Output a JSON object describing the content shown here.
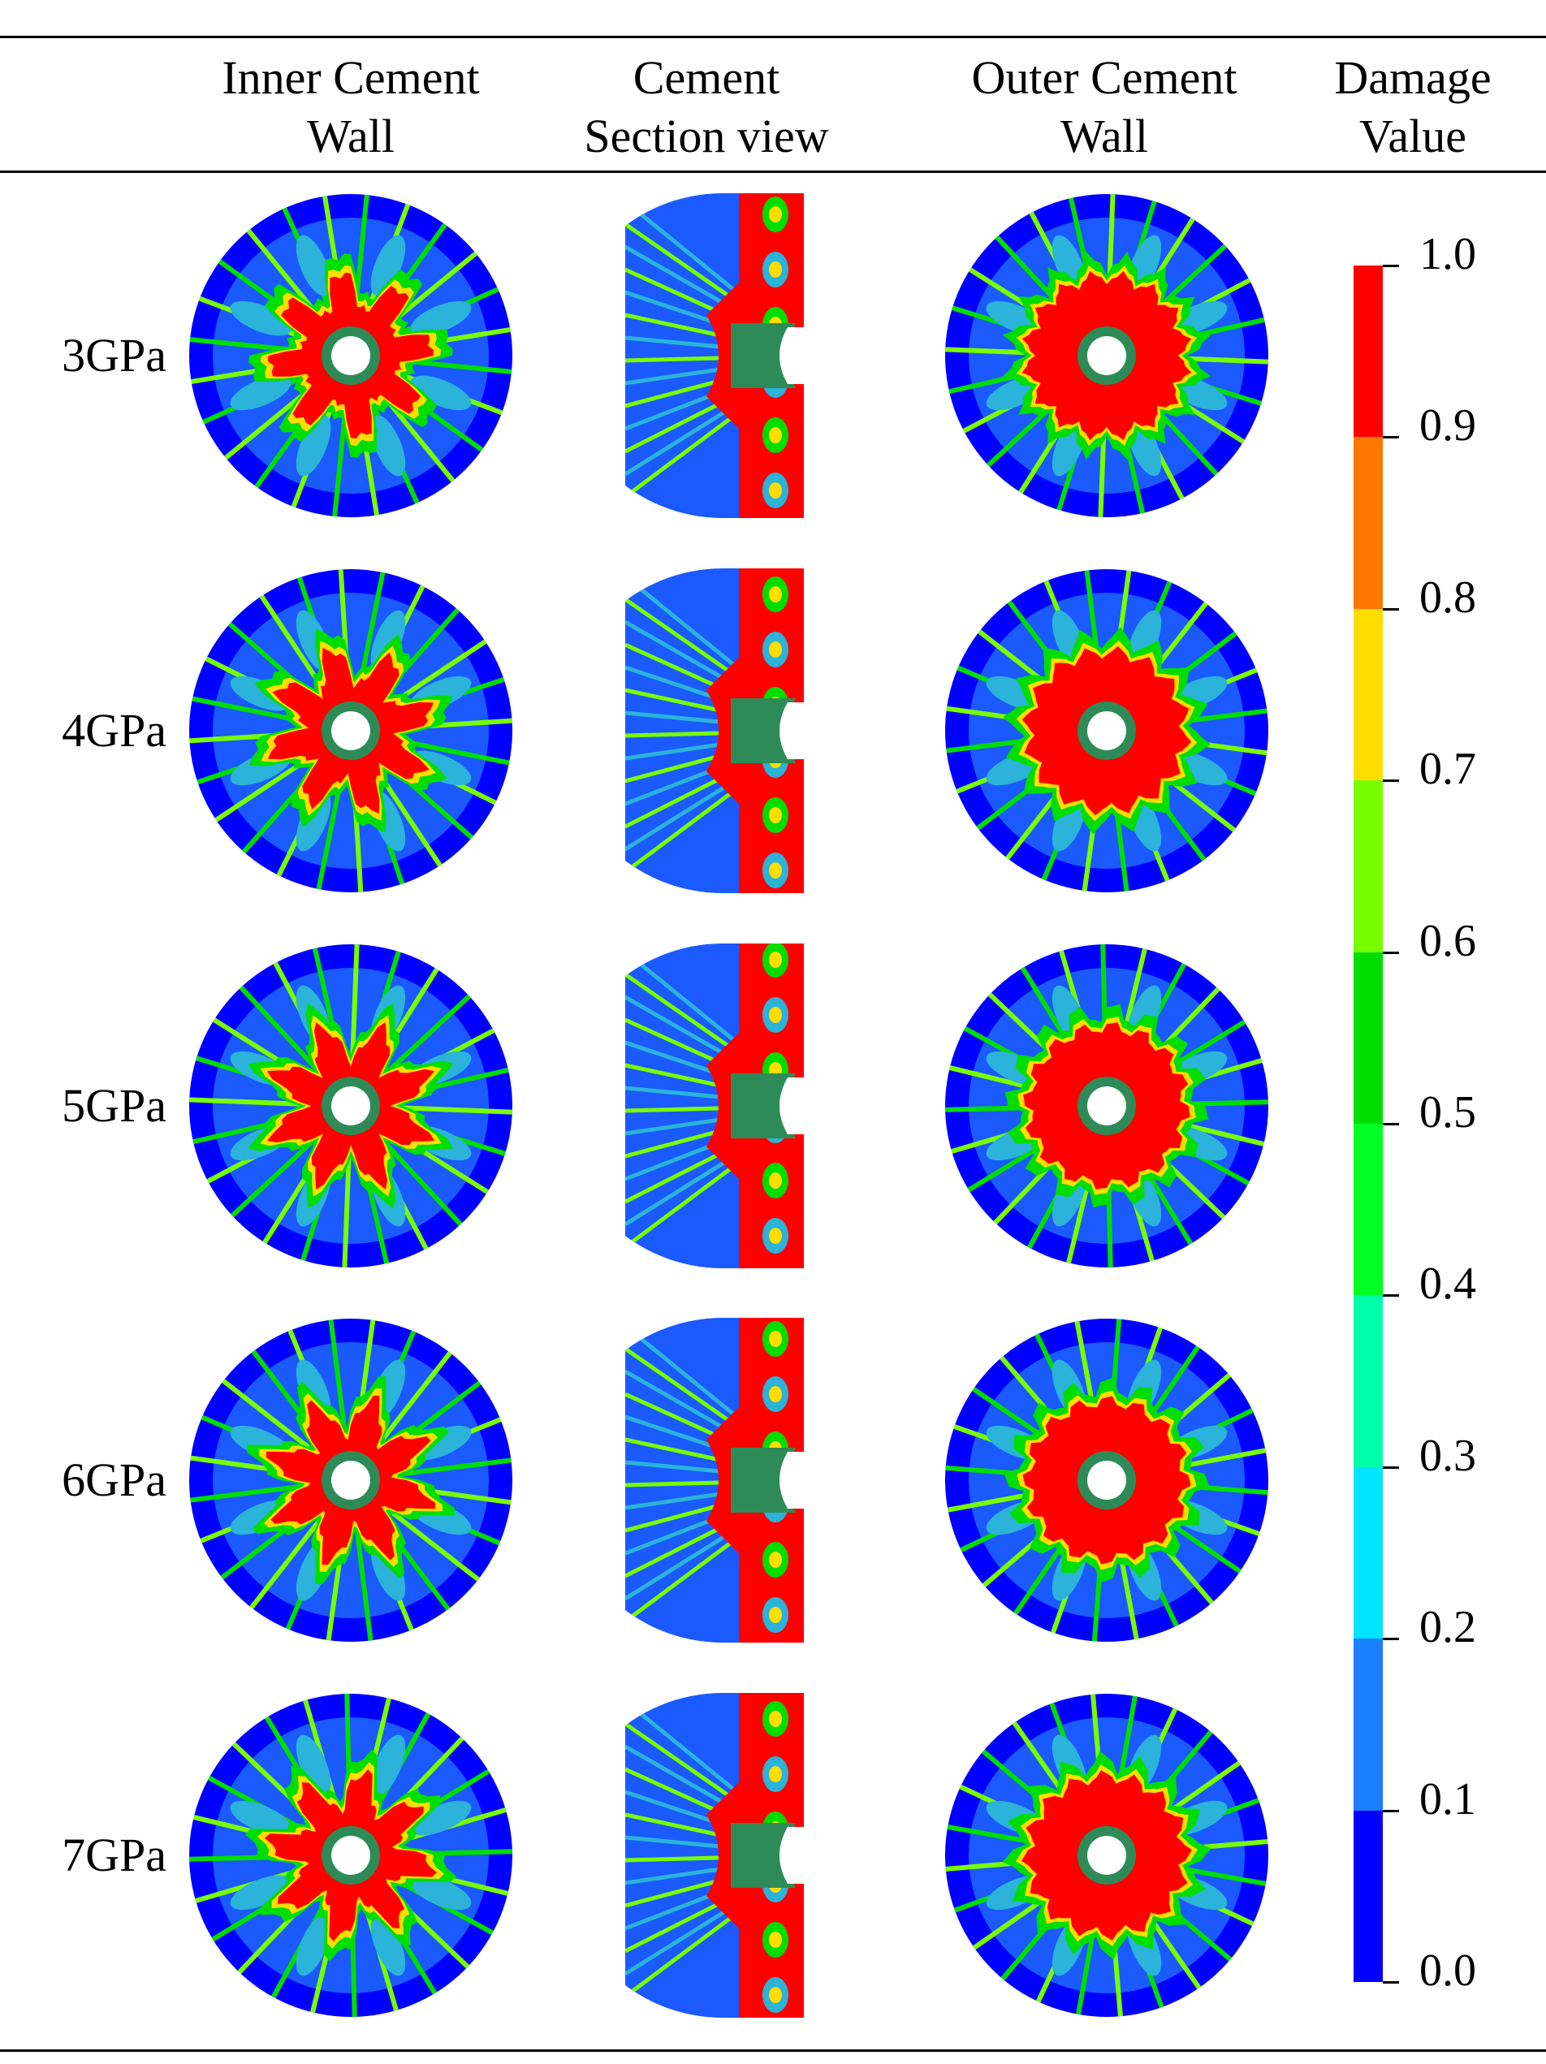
{
  "table": {
    "columns": [
      {
        "line1": "Inner Cement",
        "line2": "Wall"
      },
      {
        "line1": "Cement",
        "line2": "Section view"
      },
      {
        "line1": "Outer Cement",
        "line2": "Wall"
      },
      {
        "line1": "Damage",
        "line2": "Value"
      }
    ],
    "rows": [
      {
        "label": "3GPa"
      },
      {
        "label": "4GPa"
      },
      {
        "label": "5GPa"
      },
      {
        "label": "6GPa"
      },
      {
        "label": "7GPa"
      }
    ]
  },
  "colorbar": {
    "ticks": [
      "1.0",
      "0.9",
      "0.8",
      "0.7",
      "0.6",
      "0.5",
      "0.4",
      "0.3",
      "0.2",
      "0.1",
      "0.0"
    ],
    "band_colors": [
      "#ff0000",
      "#ff7700",
      "#ffdd00",
      "#77ff00",
      "#00dd00",
      "#00ff22",
      "#00ffaa",
      "#00e5ff",
      "#1a80ff",
      "#0000ff"
    ]
  },
  "palette": {
    "red": "#ff0000",
    "orange": "#ff7700",
    "yellow": "#ffdd00",
    "lime": "#77ff00",
    "green": "#00dd00",
    "teal": "#00ffaa",
    "cyan": "#00e5ff",
    "sky": "#1a80ff",
    "blue": "#0000ff",
    "mid_blue": "#1a5aff",
    "steel": "#2bb3d9"
  }
}
